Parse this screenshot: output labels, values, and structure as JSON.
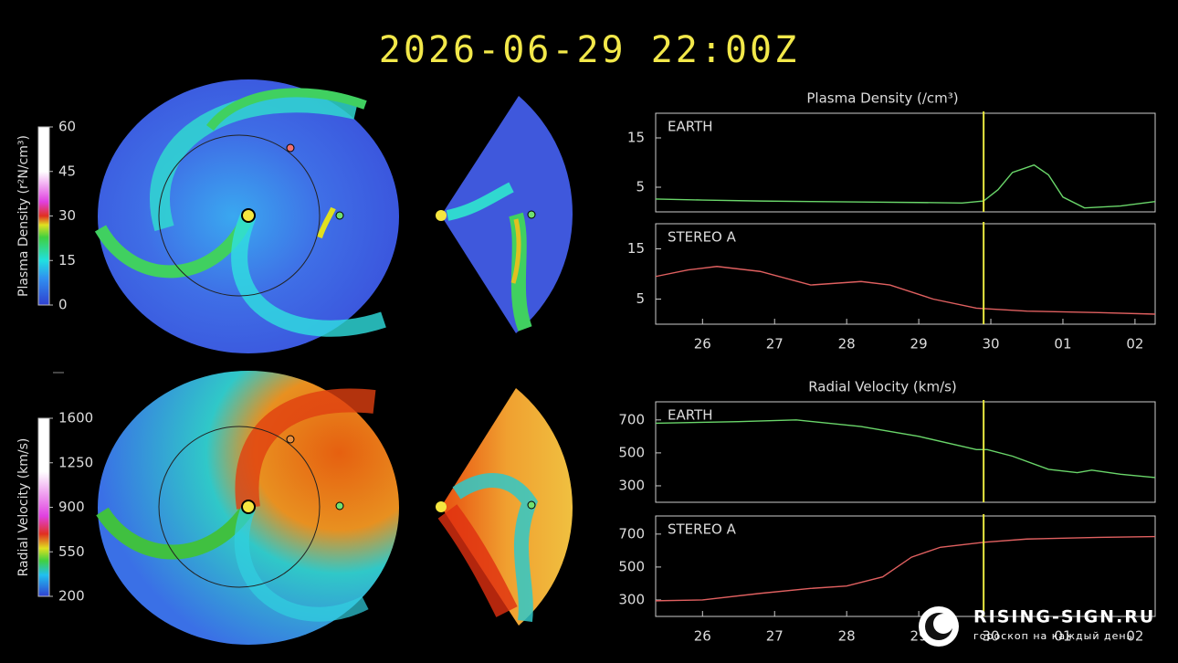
{
  "title": "2026-06-29 22:00Z",
  "colorbars": [
    {
      "label": "Plasma Density (r²N/cm³)",
      "ticks": [
        0,
        15,
        30,
        45,
        60
      ],
      "lim": [
        0,
        60
      ]
    },
    {
      "label": "Radial Velocity (km/s)",
      "ticks": [
        200,
        550,
        900,
        1250,
        1600
      ],
      "lim": [
        200,
        1600
      ]
    }
  ],
  "chart_data": [
    {
      "type": "line",
      "title": "Plasma Density (/cm³)",
      "xlim": [
        25.35,
        32.28
      ],
      "ylim": [
        0,
        20
      ],
      "yticks": [
        5,
        15
      ],
      "marker_x": 29.9,
      "x": [
        25.35,
        26,
        26.8,
        27.5,
        28.2,
        29,
        29.6,
        29.9,
        30.1,
        30.3,
        30.6,
        30.8,
        31.0,
        31.3,
        31.8,
        32.28
      ],
      "series": [
        {
          "name": "EARTH",
          "color": "#6ad66a",
          "values": [
            2.6,
            2.4,
            2.2,
            2.1,
            2.0,
            1.9,
            1.8,
            2.2,
            4.5,
            8.0,
            9.5,
            7.5,
            3.0,
            0.8,
            1.2,
            2.1
          ]
        }
      ]
    },
    {
      "type": "line",
      "xlim": [
        25.35,
        32.28
      ],
      "ylim": [
        0,
        20
      ],
      "yticks": [
        5,
        15
      ],
      "marker_x": 29.9,
      "xticks": [
        26,
        27,
        28,
        29,
        30,
        {
          "value": 31,
          "label": "01"
        },
        {
          "value": 32,
          "label": "02"
        }
      ],
      "x": [
        25.35,
        25.8,
        26.2,
        26.8,
        27.5,
        28.2,
        28.6,
        29.2,
        29.8,
        30.5,
        31.5,
        32.28
      ],
      "series": [
        {
          "name": "STEREO A",
          "color": "#e06060",
          "values": [
            9.5,
            10.8,
            11.5,
            10.5,
            7.8,
            8.5,
            7.8,
            5.0,
            3.2,
            2.6,
            2.3,
            2.0
          ]
        }
      ]
    },
    {
      "type": "line",
      "title": "Radial Velocity (km/s)",
      "xlim": [
        25.35,
        32.28
      ],
      "ylim": [
        200,
        810
      ],
      "yticks": [
        300,
        500,
        700
      ],
      "marker_x": 29.9,
      "x": [
        25.35,
        26.5,
        27.3,
        28.2,
        29,
        29.8,
        29.95,
        30.3,
        30.8,
        31.2,
        31.4,
        31.8,
        32.28
      ],
      "series": [
        {
          "name": "EARTH",
          "color": "#6ad66a",
          "values": [
            680,
            690,
            700,
            660,
            600,
            520,
            520,
            480,
            400,
            380,
            395,
            370,
            350
          ]
        }
      ]
    },
    {
      "type": "line",
      "xlim": [
        25.35,
        32.28
      ],
      "ylim": [
        200,
        810
      ],
      "yticks": [
        300,
        500,
        700
      ],
      "marker_x": 29.9,
      "xticks": [
        26,
        27,
        28,
        29,
        30,
        {
          "value": 31,
          "label": "01"
        },
        {
          "value": 32,
          "label": "02"
        }
      ],
      "x": [
        25.35,
        26,
        26.8,
        27.5,
        28,
        28.5,
        28.9,
        29.3,
        29.9,
        30.5,
        31.5,
        32.28
      ],
      "series": [
        {
          "name": "STEREO A",
          "color": "#e06060",
          "values": [
            295,
            300,
            340,
            370,
            385,
            440,
            560,
            620,
            650,
            670,
            680,
            685
          ]
        }
      ]
    }
  ],
  "watermark": {
    "brand": "RISING-SIGN.RU",
    "tagline": "гороскоп на каждый день"
  }
}
